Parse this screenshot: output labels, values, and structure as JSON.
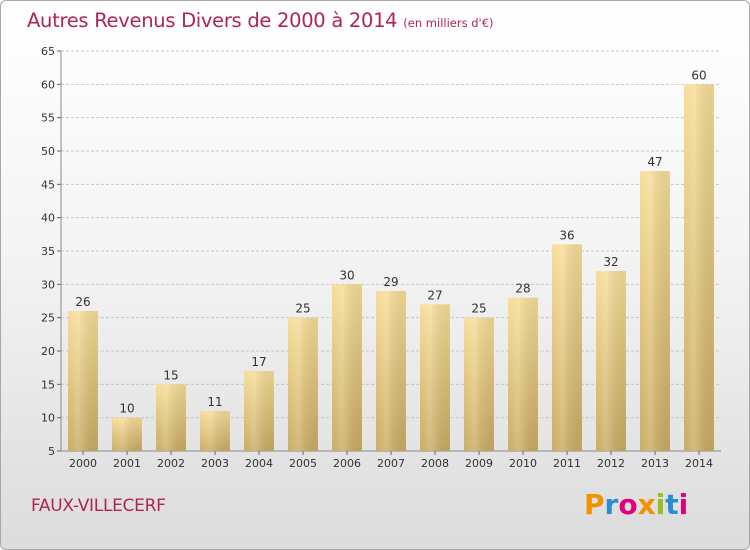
{
  "header": {
    "title": "Autres Revenus Divers de 2000 à 2014",
    "subtitle": "(en milliers d'€)"
  },
  "footer": {
    "commune": "FAUX-VILLECERF",
    "logo_text": "Proxiti",
    "logo_colors": [
      "#f39200",
      "#2a8fd0",
      "#e2007a",
      "#f39200",
      "#95c11f",
      "#2a8fd0",
      "#e2007a"
    ]
  },
  "colors": {
    "title": "#b0245a",
    "bar_top": "#f7dd97",
    "bar_bottom": "#c9ac62",
    "grid": "#c8c8c8"
  },
  "chart_data": {
    "type": "bar",
    "categories": [
      "2000",
      "2001",
      "2002",
      "2003",
      "2004",
      "2005",
      "2006",
      "2007",
      "2008",
      "2009",
      "2010",
      "2011",
      "2012",
      "2013",
      "2014"
    ],
    "values": [
      26,
      10,
      15,
      11,
      17,
      25,
      30,
      29,
      27,
      25,
      28,
      36,
      32,
      47,
      60
    ],
    "title": "Autres Revenus Divers de 2000 à 2014",
    "xlabel": "",
    "ylabel": "",
    "ylim": [
      5,
      65
    ],
    "yticks": [
      5,
      10,
      15,
      20,
      25,
      30,
      35,
      40,
      45,
      50,
      55,
      60,
      65
    ],
    "grid": true,
    "legend": "none"
  }
}
